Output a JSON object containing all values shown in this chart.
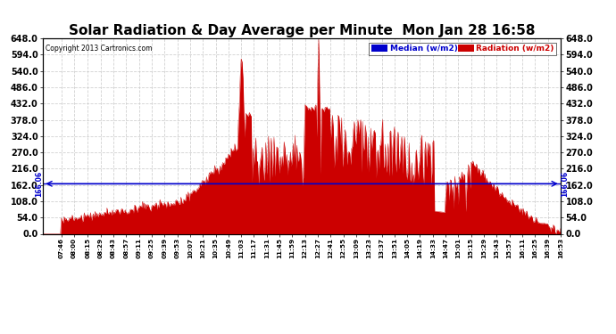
{
  "title": "Solar Radiation & Day Average per Minute  Mon Jan 28 16:58",
  "copyright": "Copyright 2013 Cartronics.com",
  "median_value": 166.06,
  "y_min": 0.0,
  "y_max": 648.0,
  "y_ticks": [
    0.0,
    54.0,
    108.0,
    162.0,
    216.0,
    270.0,
    324.0,
    378.0,
    432.0,
    486.0,
    540.0,
    594.0,
    648.0
  ],
  "median_label": "Median (w/m2)",
  "radiation_label": "Radiation (w/m2)",
  "median_color": "#0000cc",
  "radiation_color": "#cc0000",
  "background_color": "#ffffff",
  "title_fontsize": 11,
  "x_tick_labels": [
    "07:46",
    "08:00",
    "08:15",
    "08:29",
    "08:43",
    "08:57",
    "09:11",
    "09:25",
    "09:39",
    "09:53",
    "10:07",
    "10:21",
    "10:35",
    "10:49",
    "11:03",
    "11:17",
    "11:31",
    "11:45",
    "11:59",
    "12:13",
    "12:27",
    "12:41",
    "12:55",
    "13:09",
    "13:23",
    "13:37",
    "13:51",
    "14:05",
    "14:19",
    "14:33",
    "14:47",
    "15:01",
    "15:15",
    "15:29",
    "15:43",
    "15:57",
    "16:11",
    "16:25",
    "16:39",
    "16:53"
  ],
  "x_start_min": 446,
  "x_end_min": 1013,
  "n_points": 568
}
